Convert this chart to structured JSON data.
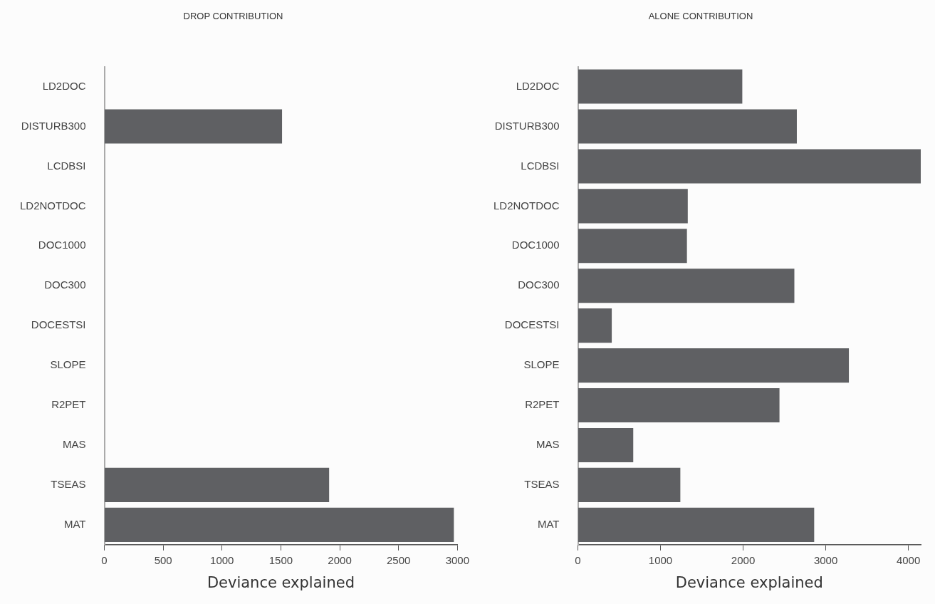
{
  "chart_data": [
    {
      "type": "bar",
      "orientation": "horizontal",
      "title": "DROP CONTRIBUTION",
      "xlabel": "Deviance explained",
      "categories": [
        "LD2DOC",
        "DISTURB300",
        "LCDBSI",
        "LD2NOTDOC",
        "DOC1000",
        "DOC300",
        "DOCESTSI",
        "SLOPE",
        "R2PET",
        "MAS",
        "TSEAS",
        "MAT"
      ],
      "values": [
        0,
        1510,
        0,
        0,
        0,
        0,
        0,
        0,
        0,
        0,
        1910,
        2970
      ],
      "color": "#5f6063",
      "xlim": [
        0,
        3000
      ],
      "xticks": [
        0,
        500,
        1000,
        1500,
        2000,
        2500,
        3000
      ],
      "grid": false,
      "legend": false
    },
    {
      "type": "bar",
      "orientation": "horizontal",
      "title": "ALONE CONTRIBUTION",
      "xlabel": "Deviance explained",
      "categories": [
        "LD2DOC",
        "DISTURB300",
        "LCDBSI",
        "LD2NOTDOC",
        "DOC1000",
        "DOC300",
        "DOCESTSI",
        "SLOPE",
        "R2PET",
        "MAS",
        "TSEAS",
        "MAT"
      ],
      "values": [
        1990,
        2650,
        4150,
        1330,
        1320,
        2620,
        410,
        3280,
        2440,
        670,
        1240,
        2860
      ],
      "color": "#5f6063",
      "xlim": [
        0,
        4150
      ],
      "xticks": [
        0,
        1000,
        2000,
        3000,
        4000
      ],
      "grid": false,
      "legend": false
    }
  ]
}
